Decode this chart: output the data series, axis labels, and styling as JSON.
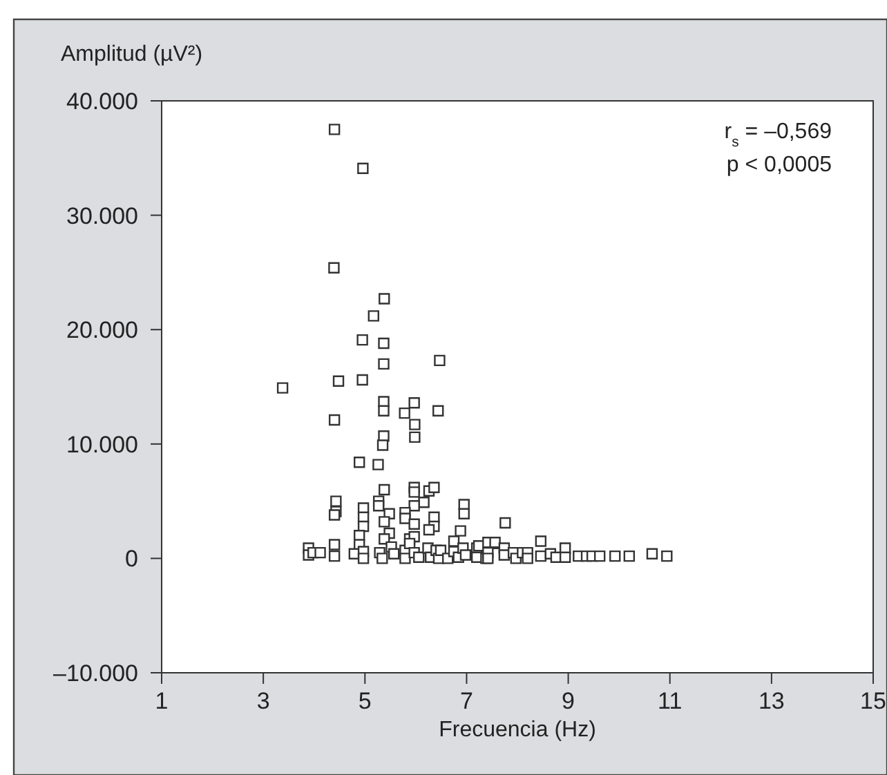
{
  "chart_data": {
    "type": "scatter",
    "xlabel": "Frecuencia (Hz)",
    "ylabel": "Amplitud (µV²)",
    "xlim": [
      1,
      15
    ],
    "xticks": [
      1,
      3,
      5,
      7,
      9,
      11,
      13,
      15
    ],
    "ylim": [
      -10000,
      40000
    ],
    "yticks": [
      {
        "value": -10000,
        "label": "–10.000"
      },
      {
        "value": 0,
        "label": "0"
      },
      {
        "value": 10000,
        "label": "10.000"
      },
      {
        "value": 20000,
        "label": "20.000"
      },
      {
        "value": 30000,
        "label": "30.000"
      },
      {
        "value": 40000,
        "label": "40.000"
      }
    ],
    "marker": "square",
    "grid": false,
    "color": "#333333",
    "annotations": [
      "r$_{s}$ = –0,569",
      "p < 0,0005"
    ],
    "x": [
      4.4,
      4.96,
      4.39,
      5.38,
      5.17,
      4.95,
      5.37,
      5.37,
      6.47,
      4.48,
      4.95,
      3.38,
      5.37,
      5.97,
      5.37,
      5.78,
      6.44,
      4.4,
      5.98,
      5.37,
      5.98,
      5.35,
      4.89,
      5.26,
      5.38,
      5.97,
      5.97,
      6.26,
      6.36,
      6.16,
      4.43,
      4.43,
      4.4,
      4.97,
      4.97,
      4.97,
      5.27,
      5.27,
      5.97,
      5.48,
      5.38,
      5.79,
      5.79,
      5.97,
      6.36,
      6.36,
      6.26,
      6.95,
      6.95,
      5.48,
      4.89,
      5.38,
      4.4,
      4.89,
      5.88,
      5.97,
      6.88,
      3.89,
      3.89,
      3.98,
      4.12,
      4.4,
      4.79,
      4.97,
      4.97,
      5.29,
      5.34,
      5.52,
      5.57,
      5.79,
      5.79,
      5.88,
      5.97,
      6.06,
      6.24,
      6.29,
      6.4,
      6.45,
      6.49,
      6.63,
      6.75,
      6.75,
      6.84,
      6.93,
      6.98,
      7.2,
      7.2,
      7.38,
      7.52,
      7.76,
      7.24,
      7.42,
      7.56,
      7.42,
      7.42,
      7.74,
      7.74,
      7.92,
      7.97,
      8.1,
      8.2,
      8.2,
      8.46,
      8.46,
      8.65,
      8.76,
      8.94,
      8.94,
      9.2,
      9.36,
      9.47,
      9.62,
      9.92,
      10.2,
      10.65,
      10.94
    ],
    "values": [
      37500,
      34100,
      25400,
      22700,
      21200,
      19100,
      18800,
      17000,
      17300,
      15500,
      15600,
      14900,
      13700,
      13600,
      12900,
      12700,
      12900,
      12100,
      11700,
      10700,
      10600,
      9900,
      8400,
      8200,
      6000,
      6200,
      5800,
      5900,
      6200,
      4900,
      5000,
      4100,
      3800,
      4400,
      3600,
      2800,
      5000,
      4600,
      4600,
      3900,
      3200,
      4000,
      3500,
      3000,
      3600,
      2800,
      2500,
      4700,
      3900,
      2200,
      2000,
      1700,
      1200,
      1200,
      1700,
      1900,
      2400,
      900,
      300,
      500,
      500,
      200,
      400,
      600,
      0,
      500,
      0,
      1000,
      400,
      700,
      0,
      1300,
      500,
      100,
      900,
      100,
      700,
      0,
      700,
      0,
      1500,
      600,
      100,
      900,
      300,
      900,
      100,
      0,
      1300,
      3100,
      1100,
      1400,
      1400,
      500,
      0,
      900,
      300,
      500,
      0,
      500,
      500,
      0,
      1500,
      200,
      400,
      100,
      900,
      100,
      200,
      200,
      200,
      200,
      200,
      200,
      400,
      200
    ]
  }
}
